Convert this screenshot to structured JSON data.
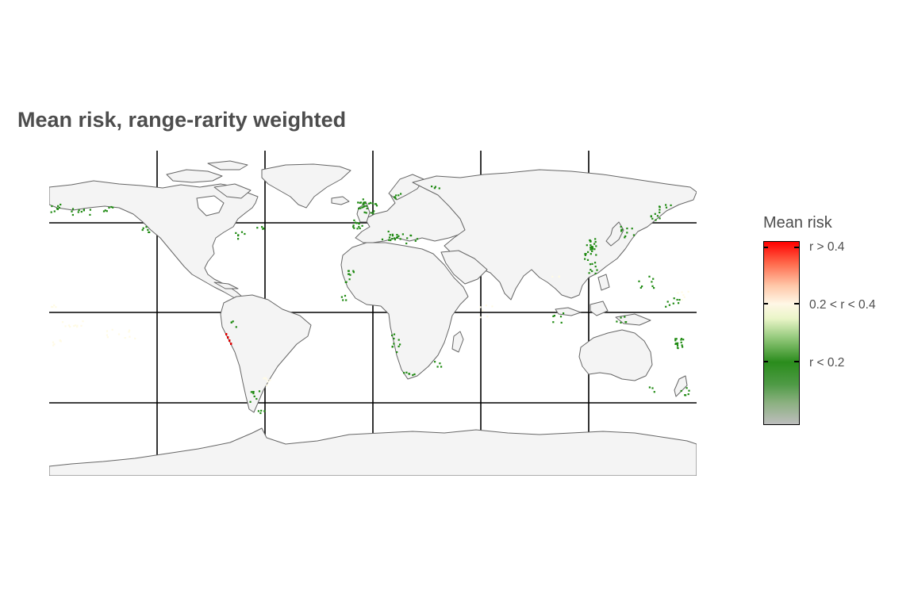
{
  "title": "Mean risk, range-rarity weighted",
  "legend": {
    "title": "Mean risk",
    "labels": [
      "r > 0.4",
      "0.2 < r < 0.4",
      "r < 0.2"
    ],
    "colors": {
      "high": "#ff0000",
      "mid": "#fff7e6",
      "low": "#1f8a12",
      "none": "#bdbdbd"
    }
  },
  "map": {
    "land_color": "#f4f4f4",
    "coast_color": "#666666",
    "graticule_color": "#000000",
    "risk_colors": {
      "low": "#1f8a12",
      "mid": "#fffbe5",
      "high": "#e00000"
    }
  }
}
